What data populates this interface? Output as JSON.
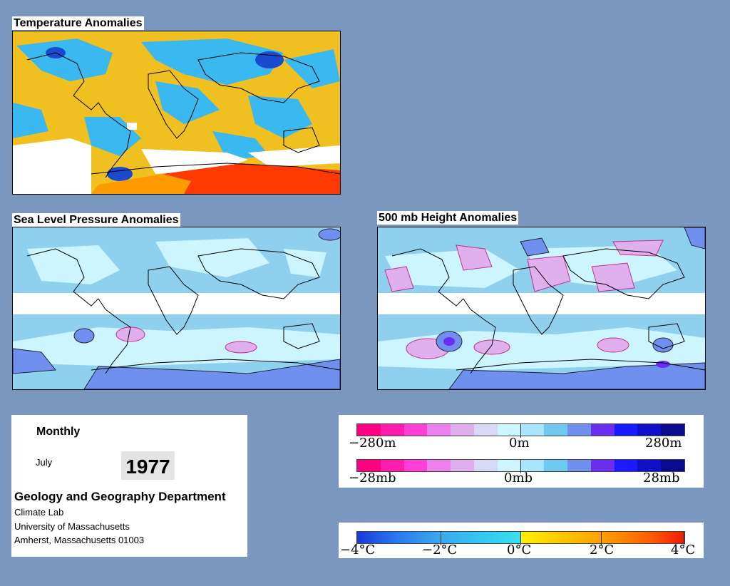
{
  "titles": {
    "temperature": "Temperature Anomalies",
    "slp": "Sea Level Pressure Anomalies",
    "height500": "500 mb Height Anomalies"
  },
  "info": {
    "frequency": "Monthly",
    "month": "July",
    "year": "1977",
    "department": "Geology and Geography Department",
    "lab": "Climate Lab",
    "university": "University of Massachusetts",
    "city": "Amherst, Massachusetts 01003"
  },
  "legends": {
    "height": {
      "min": "−280m",
      "mid": "0m",
      "max": "280m"
    },
    "pressure": {
      "min": "−28mb",
      "mid": "0mb",
      "max": "28mb"
    },
    "temperature": {
      "t1": "−4°C",
      "t2": "−2°C",
      "t3": "0°C",
      "t4": "2°C",
      "t5": "4°C"
    }
  },
  "colors": {
    "background": "#7a97c0",
    "anomaly_scale": [
      "#ff0080",
      "#ff1cae",
      "#ff40d8",
      "#ee80ee",
      "#e0b0ee",
      "#d8d8f8",
      "#ccf5ff",
      "#a8e6ff",
      "#6fc8f0",
      "#7090f0",
      "#6a2ef0",
      "#1a1aff",
      "#1010c8",
      "#0a0a90"
    ],
    "temperature_scale": [
      "#1a3ad8",
      "#2a7af0",
      "#3aa8f0",
      "#32c8f0",
      "#3ae0f0",
      "#fff000",
      "#ffd000",
      "#ffb000",
      "#ff8a00",
      "#ff5a00",
      "#ee1a00"
    ]
  }
}
